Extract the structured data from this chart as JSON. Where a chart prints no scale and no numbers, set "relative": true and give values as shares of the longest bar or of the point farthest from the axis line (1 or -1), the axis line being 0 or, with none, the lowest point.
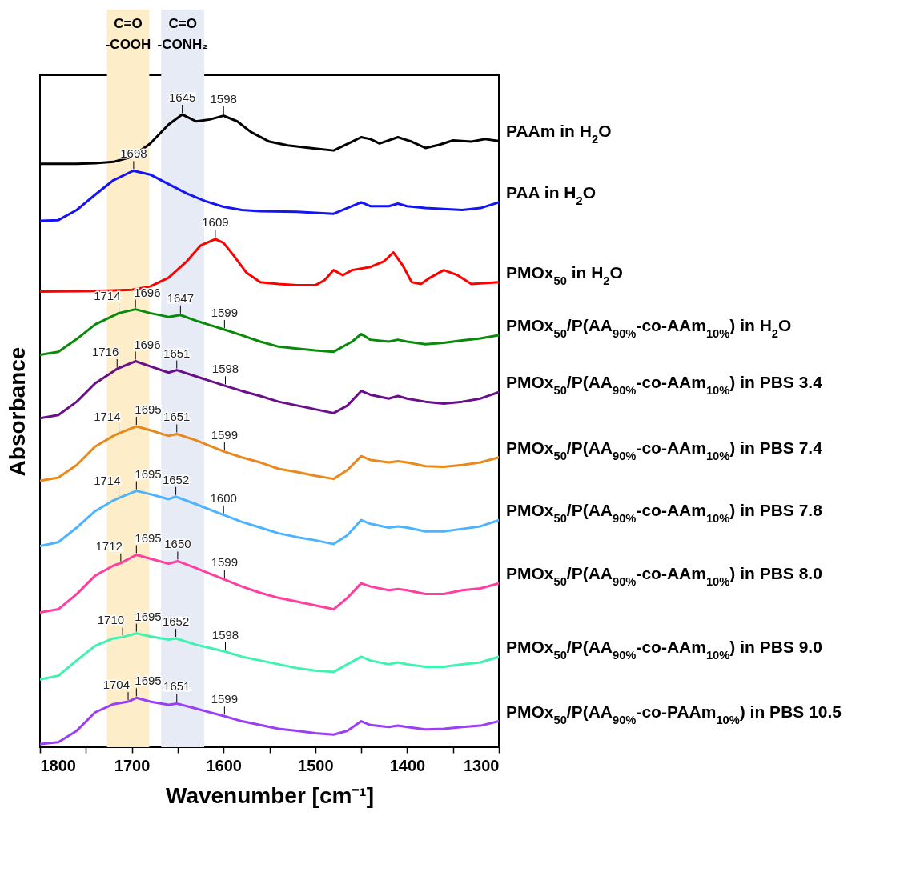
{
  "chart_data": {
    "type": "line",
    "relative": true,
    "xlabel": "Wavenumber [cm⁻¹]",
    "ylabel": "Absorbance",
    "xlim": [
      1800,
      1300
    ],
    "xticks": [
      1800,
      {
        "value": 1750,
        "label": null
      },
      1700,
      {
        "value": 1650,
        "label": null
      },
      1600,
      {
        "value": 1550,
        "label": null
      },
      1500,
      {
        "value": 1450,
        "label": null
      },
      1400,
      {
        "value": 1350,
        "label": null
      },
      1300
    ],
    "bands": [
      {
        "axis": "x",
        "from": 1727,
        "to": 1681,
        "label": "C=O\n-COOH",
        "color": "#fdedc8"
      },
      {
        "axis": "x",
        "from": 1668,
        "to": 1621,
        "label": "C=O\n-CONH₂",
        "color": "#e7ebf5"
      }
    ],
    "series": [
      {
        "name": "PAAm in H$_{2}$O",
        "color": "#000000",
        "x": [
          1800,
          1760,
          1740,
          1720,
          1700,
          1680,
          1660,
          1645,
          1630,
          1615,
          1600,
          1585,
          1570,
          1550,
          1530,
          1500,
          1480,
          1460,
          1450,
          1440,
          1430,
          1410,
          1395,
          1380,
          1365,
          1350,
          1330,
          1315,
          1300
        ],
        "values": [
          0.922,
          0.922,
          0.923,
          0.925,
          0.933,
          0.954,
          0.984,
          1,
          0.989,
          0.992,
          0.998,
          0.989,
          0.972,
          0.957,
          0.951,
          0.946,
          0.943,
          0.957,
          0.964,
          0.961,
          0.954,
          0.964,
          0.957,
          0.947,
          0.952,
          0.959,
          0.957,
          0.961,
          0.958
        ]
      },
      {
        "name": "PAA in H$_{2}$O",
        "color": "#1414f5",
        "x": [
          1800,
          1780,
          1760,
          1740,
          1720,
          1700,
          1698,
          1680,
          1660,
          1640,
          1620,
          1600,
          1580,
          1560,
          1520,
          1480,
          1460,
          1450,
          1440,
          1420,
          1410,
          1400,
          1380,
          1340,
          1320,
          1300
        ],
        "values": [
          0.832,
          0.833,
          0.849,
          0.873,
          0.896,
          0.91,
          0.911,
          0.905,
          0.89,
          0.875,
          0.863,
          0.854,
          0.849,
          0.847,
          0.846,
          0.843,
          0.855,
          0.861,
          0.855,
          0.855,
          0.859,
          0.855,
          0.852,
          0.849,
          0.852,
          0.861
        ]
      },
      {
        "name": "PMOx$_{50}$ in H$_{2}$O",
        "color": "#ff0000",
        "x": [
          1800,
          1740,
          1700,
          1680,
          1660,
          1640,
          1625,
          1609,
          1600,
          1590,
          1575,
          1560,
          1540,
          1520,
          1500,
          1490,
          1480,
          1470,
          1460,
          1440,
          1425,
          1415,
          1405,
          1395,
          1385,
          1375,
          1360,
          1345,
          1330,
          1300
        ],
        "values": [
          0.72,
          0.721,
          0.723,
          0.728,
          0.742,
          0.768,
          0.793,
          0.803,
          0.797,
          0.779,
          0.75,
          0.735,
          0.732,
          0.73,
          0.73,
          0.738,
          0.754,
          0.746,
          0.754,
          0.759,
          0.768,
          0.782,
          0.762,
          0.735,
          0.732,
          0.742,
          0.754,
          0.746,
          0.732,
          0.735
        ]
      },
      {
        "name": "PMOx$_{50}$/P(AA$_{90%}$-co-AAm$_{10%}$) in H$_{2}$O",
        "color": "#0a8a0a",
        "x": [
          1800,
          1780,
          1760,
          1740,
          1720,
          1714,
          1696,
          1680,
          1660,
          1647,
          1630,
          1599,
          1580,
          1560,
          1540,
          1520,
          1500,
          1480,
          1460,
          1450,
          1440,
          1420,
          1410,
          1400,
          1380,
          1360,
          1340,
          1320,
          1300
        ],
        "values": [
          0.62,
          0.625,
          0.645,
          0.668,
          0.682,
          0.686,
          0.692,
          0.686,
          0.68,
          0.683,
          0.674,
          0.66,
          0.651,
          0.641,
          0.633,
          0.63,
          0.627,
          0.625,
          0.641,
          0.653,
          0.644,
          0.641,
          0.644,
          0.641,
          0.637,
          0.639,
          0.643,
          0.646,
          0.651
        ]
      },
      {
        "name": "PMOx$_{50}$/P(AA$_{90%}$-co-AAm$_{10%}$) in PBS 3.4",
        "color": "#6a0f8a",
        "x": [
          1800,
          1780,
          1760,
          1740,
          1720,
          1716,
          1696,
          1680,
          1660,
          1651,
          1630,
          1598,
          1580,
          1560,
          1540,
          1520,
          1500,
          1480,
          1465,
          1450,
          1440,
          1420,
          1410,
          1400,
          1380,
          1360,
          1340,
          1320,
          1300
        ],
        "values": [
          0.52,
          0.525,
          0.546,
          0.575,
          0.594,
          0.598,
          0.61,
          0.602,
          0.592,
          0.596,
          0.586,
          0.571,
          0.563,
          0.555,
          0.546,
          0.54,
          0.534,
          0.528,
          0.54,
          0.563,
          0.557,
          0.551,
          0.555,
          0.551,
          0.546,
          0.543,
          0.546,
          0.551,
          0.561
        ]
      },
      {
        "name": "PMOx$_{50}$/P(AA$_{90%}$-co-AAm$_{10%}$) in PBS 7.4",
        "color": "#e8891e",
        "x": [
          1800,
          1780,
          1760,
          1740,
          1720,
          1714,
          1695,
          1680,
          1660,
          1651,
          1630,
          1599,
          1580,
          1560,
          1540,
          1520,
          1500,
          1480,
          1465,
          1450,
          1440,
          1420,
          1410,
          1400,
          1380,
          1360,
          1340,
          1320,
          1300
        ],
        "values": [
          0.421,
          0.426,
          0.446,
          0.475,
          0.492,
          0.496,
          0.507,
          0.501,
          0.492,
          0.495,
          0.485,
          0.467,
          0.458,
          0.45,
          0.44,
          0.435,
          0.429,
          0.424,
          0.438,
          0.46,
          0.454,
          0.45,
          0.452,
          0.45,
          0.444,
          0.443,
          0.446,
          0.45,
          0.458
        ]
      },
      {
        "name": "PMOx$_{50}$/P(AA$_{90%}$-co-AAm$_{10%}$) in PBS 7.8",
        "color": "#4db3ff",
        "x": [
          1800,
          1780,
          1760,
          1740,
          1720,
          1714,
          1695,
          1680,
          1660,
          1652,
          1630,
          1600,
          1580,
          1560,
          1540,
          1520,
          1500,
          1480,
          1465,
          1450,
          1440,
          1420,
          1410,
          1400,
          1380,
          1360,
          1340,
          1320,
          1300
        ],
        "values": [
          0.318,
          0.324,
          0.347,
          0.373,
          0.39,
          0.394,
          0.405,
          0.4,
          0.392,
          0.396,
          0.384,
          0.367,
          0.356,
          0.347,
          0.338,
          0.332,
          0.327,
          0.321,
          0.335,
          0.359,
          0.353,
          0.347,
          0.349,
          0.347,
          0.341,
          0.341,
          0.345,
          0.349,
          0.359
        ]
      },
      {
        "name": "PMOx$_{50}$/P(AA$_{90%}$-co-AAm$_{10%}$) in PBS 8.0",
        "color": "#ff3fa0",
        "x": [
          1800,
          1780,
          1760,
          1740,
          1720,
          1712,
          1695,
          1680,
          1660,
          1650,
          1630,
          1599,
          1580,
          1560,
          1540,
          1520,
          1500,
          1480,
          1465,
          1450,
          1440,
          1420,
          1410,
          1400,
          1380,
          1360,
          1340,
          1320,
          1300
        ],
        "values": [
          0.213,
          0.218,
          0.242,
          0.271,
          0.287,
          0.291,
          0.304,
          0.298,
          0.29,
          0.294,
          0.283,
          0.265,
          0.254,
          0.244,
          0.236,
          0.23,
          0.224,
          0.218,
          0.236,
          0.259,
          0.254,
          0.248,
          0.25,
          0.248,
          0.242,
          0.242,
          0.248,
          0.251,
          0.259
        ]
      },
      {
        "name": "PMOx$_{50}$/P(AA$_{90%}$-co-AAm$_{10%}$) in PBS 9.0",
        "color": "#3ef2b0",
        "x": [
          1800,
          1780,
          1760,
          1740,
          1720,
          1710,
          1695,
          1680,
          1660,
          1652,
          1630,
          1598,
          1580,
          1560,
          1540,
          1520,
          1500,
          1480,
          1465,
          1450,
          1440,
          1420,
          1410,
          1400,
          1380,
          1360,
          1340,
          1320,
          1300
        ],
        "values": [
          0.107,
          0.113,
          0.137,
          0.16,
          0.172,
          0.174,
          0.18,
          0.175,
          0.17,
          0.172,
          0.162,
          0.151,
          0.143,
          0.137,
          0.131,
          0.125,
          0.121,
          0.119,
          0.131,
          0.143,
          0.137,
          0.131,
          0.134,
          0.131,
          0.127,
          0.127,
          0.131,
          0.134,
          0.143
        ]
      },
      {
        "name": "PMOx$_{50}$/P(AA$_{90%}$-co-PAAm$_{10%}$) in PBS 10.5",
        "color": "#9b3ff5",
        "x": [
          1800,
          1780,
          1760,
          1740,
          1720,
          1704,
          1695,
          1680,
          1660,
          1651,
          1630,
          1599,
          1580,
          1560,
          1540,
          1520,
          1500,
          1480,
          1465,
          1450,
          1440,
          1420,
          1410,
          1400,
          1380,
          1360,
          1340,
          1320,
          1300
        ],
        "values": [
          0.005,
          0.008,
          0.026,
          0.055,
          0.068,
          0.072,
          0.078,
          0.072,
          0.067,
          0.069,
          0.061,
          0.049,
          0.041,
          0.035,
          0.029,
          0.026,
          0.022,
          0.02,
          0.026,
          0.041,
          0.035,
          0.032,
          0.034,
          0.032,
          0.028,
          0.029,
          0.032,
          0.034,
          0.041
        ]
      }
    ],
    "annotations": [
      {
        "text": "1645",
        "x": 1645,
        "y": 1
      },
      {
        "text": "1598",
        "x": 1600,
        "y": 0.998
      },
      {
        "text": "1698",
        "x": 1698,
        "y": 0.911
      },
      {
        "text": "1609",
        "x": 1609,
        "y": 0.803
      },
      {
        "text": "1714",
        "x": 1714,
        "y": 0.686
      },
      {
        "text": "1696",
        "x": 1696,
        "y": 0.692
      },
      {
        "text": "1647",
        "x": 1647,
        "y": 0.683
      },
      {
        "text": "1599",
        "x": 1599,
        "y": 0.66
      },
      {
        "text": "1716",
        "x": 1716,
        "y": 0.598
      },
      {
        "text": "1696",
        "x": 1696,
        "y": 0.61
      },
      {
        "text": "1651",
        "x": 1651,
        "y": 0.596
      },
      {
        "text": "1598",
        "x": 1598,
        "y": 0.571
      },
      {
        "text": "1714",
        "x": 1714,
        "y": 0.496
      },
      {
        "text": "1695",
        "x": 1695,
        "y": 0.507
      },
      {
        "text": "1651",
        "x": 1651,
        "y": 0.495
      },
      {
        "text": "1599",
        "x": 1599,
        "y": 0.467
      },
      {
        "text": "1714",
        "x": 1714,
        "y": 0.394
      },
      {
        "text": "1695",
        "x": 1695,
        "y": 0.405
      },
      {
        "text": "1652",
        "x": 1652,
        "y": 0.396
      },
      {
        "text": "1600",
        "x": 1600,
        "y": 0.367
      },
      {
        "text": "1712",
        "x": 1712,
        "y": 0.291
      },
      {
        "text": "1695",
        "x": 1695,
        "y": 0.304
      },
      {
        "text": "1650",
        "x": 1650,
        "y": 0.294
      },
      {
        "text": "1599",
        "x": 1599,
        "y": 0.265
      },
      {
        "text": "1710",
        "x": 1710,
        "y": 0.174
      },
      {
        "text": "1695",
        "x": 1695,
        "y": 0.18
      },
      {
        "text": "1652",
        "x": 1652,
        "y": 0.172
      },
      {
        "text": "1598",
        "x": 1598,
        "y": 0.151
      },
      {
        "text": "1704",
        "x": 1704,
        "y": 0.072
      },
      {
        "text": "1695",
        "x": 1695,
        "y": 0.078
      },
      {
        "text": "1651",
        "x": 1651,
        "y": 0.069
      },
      {
        "text": "1599",
        "x": 1599,
        "y": 0.049
      }
    ]
  }
}
